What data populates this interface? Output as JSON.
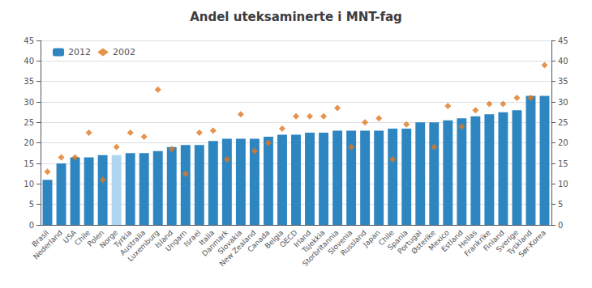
{
  "chart_data": {
    "type": "bar",
    "title": "Andel uteksaminerte i MNT-fag",
    "categories": [
      "Brasil",
      "Nederland",
      "USA",
      "Chile",
      "Polen",
      "Norge",
      "Tyrkia",
      "Australia",
      "Luxemburg",
      "Island",
      "Ungarn",
      "Israel",
      "Italia",
      "Danmark",
      "Slovakia",
      "New Zealand",
      "Canada",
      "Belgia",
      "OECD",
      "Irland",
      "Tsjekkia",
      "Storbritannia",
      "Slovenia",
      "Russland",
      "Japan",
      "Chile",
      "Spania",
      "Portugal",
      "Østerike",
      "Mexico",
      "Estland",
      "Hellas",
      "Frankrike",
      "Finland",
      "Sverige",
      "Tyskland",
      "Sør-Korea"
    ],
    "series": [
      {
        "name": "2012",
        "type": "bar",
        "color": "#2E86C1",
        "colors": [
          "#2E86C1",
          "#2E86C1",
          "#2E86C1",
          "#2E86C1",
          "#2E86C1",
          "#AED6F1",
          "#2E86C1",
          "#2E86C1",
          "#2E86C1",
          "#2E86C1",
          "#2E86C1",
          "#2E86C1",
          "#2E86C1",
          "#2E86C1",
          "#2E86C1",
          "#2E86C1",
          "#2E86C1",
          "#2E86C1",
          "#2E86C1",
          "#2E86C1",
          "#2E86C1",
          "#2E86C1",
          "#2E86C1",
          "#2E86C1",
          "#2E86C1",
          "#2E86C1",
          "#2E86C1",
          "#2E86C1",
          "#2E86C1",
          "#2E86C1",
          "#2E86C1",
          "#2E86C1",
          "#2E86C1",
          "#2E86C1",
          "#2E86C1",
          "#2E86C1",
          "#2E86C1"
        ],
        "values": [
          11.0,
          15.0,
          16.5,
          16.5,
          17.0,
          17.0,
          17.5,
          17.5,
          18.0,
          19.0,
          19.5,
          19.5,
          20.5,
          21.0,
          21.0,
          21.0,
          21.5,
          22.0,
          22.0,
          22.5,
          22.5,
          23.0,
          23.0,
          23.0,
          23.0,
          23.5,
          23.5,
          25.0,
          25.0,
          25.5,
          26.0,
          26.5,
          27.0,
          27.5,
          28.0,
          31.5,
          31.5
        ]
      },
      {
        "name": "2002",
        "type": "scatter",
        "color": "#E07820",
        "marker": "diamond",
        "values": [
          13.0,
          16.5,
          16.5,
          22.5,
          11.0,
          19.0,
          22.5,
          21.5,
          33.0,
          18.5,
          12.5,
          22.5,
          23.0,
          16.0,
          27.0,
          18.0,
          20.0,
          23.5,
          26.5,
          26.5,
          26.5,
          28.5,
          19.0,
          25.0,
          26.0,
          16.0,
          24.5,
          null,
          19.0,
          29.0,
          24.0,
          28.0,
          29.5,
          29.5,
          31.0,
          31.0,
          39.0
        ]
      }
    ],
    "ylim": [
      0,
      45
    ],
    "yticks": [
      0,
      5,
      10,
      15,
      20,
      25,
      30,
      35,
      40,
      45
    ],
    "y2lim": [
      0,
      45
    ],
    "y2ticks": [
      0,
      5,
      10,
      15,
      20,
      25,
      30,
      35,
      40,
      45
    ],
    "grid": true,
    "legend": "upper left"
  }
}
